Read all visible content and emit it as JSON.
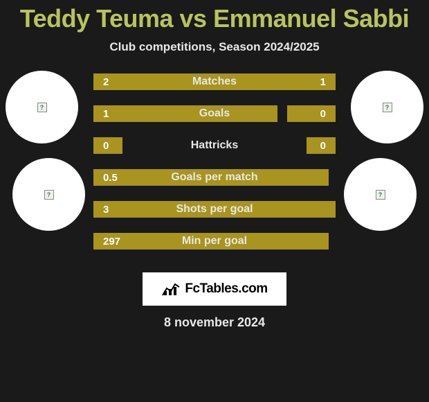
{
  "title": "Teddy Teuma vs Emmanuel Sabbi",
  "subtitle": "Club competitions, Season 2024/2025",
  "date": "8 november 2024",
  "logo": {
    "text": "FcTables.com"
  },
  "colors": {
    "title_color": "#b8c45a",
    "bar_color": "#a8941e",
    "text_color": "#e8e8e8",
    "background": "#1a1a1a",
    "avatar_bg": "#ffffff",
    "logo_bg": "#ffffff"
  },
  "stats": [
    {
      "label": "Matches",
      "left_val": "2",
      "right_val": "1",
      "left_pct": 66.7,
      "right_pct": 33.3
    },
    {
      "label": "Goals",
      "left_val": "1",
      "right_val": "0",
      "left_pct": 76,
      "right_pct": 20
    },
    {
      "label": "Hattricks",
      "left_val": "0",
      "right_val": "0",
      "left_pct": 12,
      "right_pct": 12
    },
    {
      "label": "Goals per match",
      "left_val": "0.5",
      "right_val": "",
      "left_pct": 97,
      "right_pct": 0
    },
    {
      "label": "Shots per goal",
      "left_val": "3",
      "right_val": "",
      "left_pct": 100,
      "right_pct": 0
    },
    {
      "label": "Min per goal",
      "left_val": "297",
      "right_val": "",
      "left_pct": 97,
      "right_pct": 0
    }
  ]
}
